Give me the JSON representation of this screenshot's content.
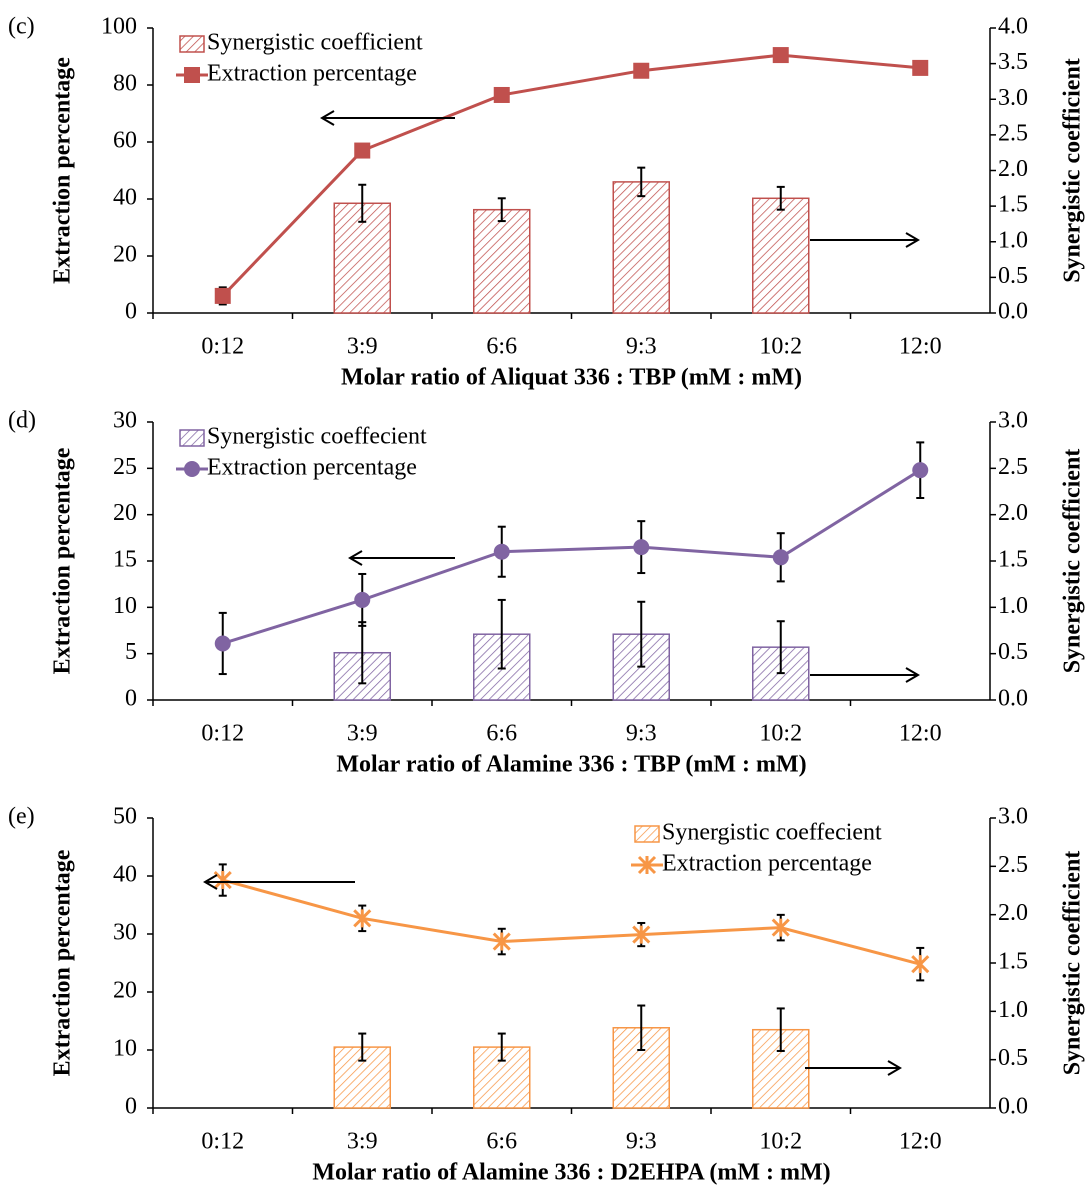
{
  "chart_data": [
    {
      "type": "combo",
      "panel_label": "(c)",
      "xlabel": "Molar ratio of Aliquat 336 : TBP (mM : mM)",
      "ylabel": "Extraction percentage",
      "y2label": "Synergistic coefficient",
      "categories": [
        "0:12",
        "3:9",
        "6:6",
        "9:3",
        "10:2",
        "12:0"
      ],
      "ylim": [
        0,
        100
      ],
      "yticks": [
        0,
        20,
        40,
        60,
        80,
        100
      ],
      "y2lim": [
        0,
        4
      ],
      "y2ticks": [
        {
          "value": 0,
          "label": "0.0"
        },
        0.5,
        {
          "value": 1,
          "label": "1.0"
        },
        1.5,
        {
          "value": 2,
          "label": "2.0"
        },
        2.5,
        {
          "value": 3,
          "label": "3.0"
        },
        3.5,
        {
          "value": 4,
          "label": "4.0"
        }
      ],
      "legend": "upper left",
      "series": [
        {
          "name": "Synergistic coefficient",
          "type": "bar",
          "axis": "y2",
          "color": "#c0504d",
          "values": [
            null,
            1.54,
            1.45,
            1.84,
            1.61,
            null
          ],
          "errors": [
            null,
            0.26,
            0.16,
            0.2,
            0.16,
            null
          ]
        },
        {
          "name": "Extraction percentage",
          "type": "line",
          "marker": "square",
          "color": "#c0504d",
          "values": [
            6,
            57,
            76.5,
            85,
            90.5,
            86
          ],
          "errors": [
            3,
            null,
            null,
            null,
            null,
            null
          ]
        }
      ]
    },
    {
      "type": "combo",
      "panel_label": "(d)",
      "xlabel": "Molar ratio of Alamine 336 : TBP (mM : mM)",
      "ylabel": "Extraction percentage",
      "y2label": "Synergistic coefficient",
      "categories": [
        "0:12",
        "3:9",
        "6:6",
        "9:3",
        "10:2",
        "12:0"
      ],
      "ylim": [
        0,
        30
      ],
      "yticks": [
        0,
        5,
        10,
        15,
        20,
        25,
        30
      ],
      "y2lim": [
        0,
        3
      ],
      "y2ticks": [
        {
          "value": 0,
          "label": "0.0"
        },
        0.5,
        {
          "value": 1,
          "label": "1.0"
        },
        1.5,
        {
          "value": 2,
          "label": "2.0"
        },
        2.5,
        {
          "value": 3,
          "label": "3.0"
        }
      ],
      "legend": "upper left",
      "series": [
        {
          "name": "Synergistic coeffecient",
          "type": "bar",
          "axis": "y2",
          "color": "#8064a2",
          "values": [
            null,
            0.51,
            0.71,
            0.71,
            0.57,
            null
          ],
          "errors": [
            null,
            0.33,
            0.37,
            0.35,
            0.28,
            null
          ]
        },
        {
          "name": "Extraction percentage",
          "type": "line",
          "marker": "circle",
          "color": "#8064a2",
          "values": [
            6.1,
            10.8,
            16,
            16.5,
            15.4,
            24.8
          ],
          "errors": [
            3.3,
            2.8,
            2.7,
            2.8,
            2.6,
            3
          ]
        }
      ]
    },
    {
      "type": "combo",
      "panel_label": "(e)",
      "xlabel": "Molar ratio of Alamine 336 : D2EHPA (mM : mM)",
      "ylabel": "Extraction percentage",
      "y2label": "Synergistic coefficient",
      "categories": [
        "0:12",
        "3:9",
        "6:6",
        "9:3",
        "10:2",
        "12:0"
      ],
      "ylim": [
        0,
        50
      ],
      "yticks": [
        0,
        10,
        20,
        30,
        40,
        50
      ],
      "y2lim": [
        0,
        3
      ],
      "y2ticks": [
        {
          "value": 0,
          "label": "0.0"
        },
        0.5,
        {
          "value": 1,
          "label": "1.0"
        },
        1.5,
        {
          "value": 2,
          "label": "2.0"
        },
        2.5,
        {
          "value": 3,
          "label": "3.0"
        }
      ],
      "legend": "upper right",
      "series": [
        {
          "name": "Synergistic coeffecient",
          "type": "bar",
          "axis": "y2",
          "color": "#f79646",
          "values": [
            null,
            0.63,
            0.63,
            0.83,
            0.81,
            null
          ],
          "errors": [
            null,
            0.14,
            0.14,
            0.23,
            0.22,
            null
          ]
        },
        {
          "name": "Extraction percentage",
          "type": "line",
          "marker": "star",
          "color": "#f79646",
          "values": [
            39.3,
            32.7,
            28.7,
            29.9,
            31.1,
            24.8
          ],
          "errors": [
            2.7,
            2.2,
            2.2,
            2,
            2.2,
            2.8
          ]
        }
      ]
    }
  ]
}
